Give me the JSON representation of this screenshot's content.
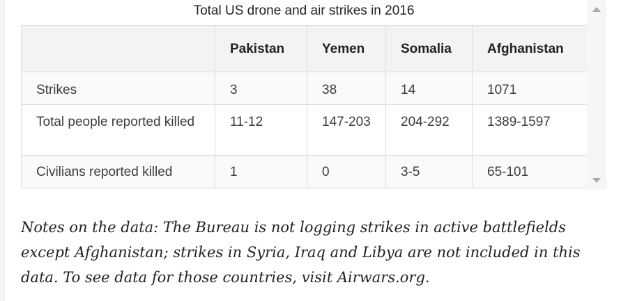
{
  "table": {
    "caption": "Total US drone and air strikes in 2016",
    "columns": [
      "",
      "Pakistan",
      "Yemen",
      "Somalia",
      "Afghanistan"
    ],
    "rows": [
      {
        "label": "Strikes",
        "values": [
          "3",
          "38",
          "14",
          "1071"
        ]
      },
      {
        "label": "Total people reported killed",
        "values": [
          "11-12",
          "147-203",
          "204-292",
          "1389-1597"
        ]
      },
      {
        "label": "Civilians reported killed",
        "values": [
          "1",
          "0",
          "3-5",
          "65-101"
        ]
      }
    ]
  },
  "notes": "Notes on the data: The Bureau is not logging strikes in active battlefields except Afghanistan; strikes in Syria, Iraq and Libya are not included in this data. To see data for those countries, visit Airwars.org.",
  "icons": {
    "scroll_up": "chevron-up-icon",
    "scroll_down": "chevron-down-icon"
  }
}
